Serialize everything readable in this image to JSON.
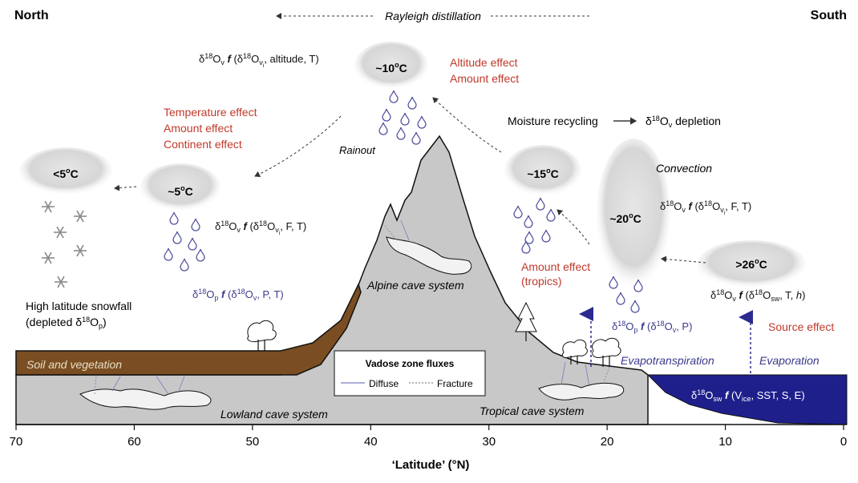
{
  "header": {
    "north": "North",
    "south": "South",
    "rayleigh": "Rayleigh distillation"
  },
  "clouds": {
    "c10": "~10",
    "c5a": "<5",
    "c5b": "~5",
    "c15": "~15",
    "c20": "~20",
    "c26": ">26",
    "deg": "o",
    "C": "C"
  },
  "effects": {
    "altitude": "Altitude effect",
    "amount_top": "Amount effect",
    "temperature": "Temperature effect",
    "amount_left": "Amount effect",
    "continent": "Continent effect",
    "amount_tropics": "Amount effect",
    "tropics": "(tropics)",
    "source": "Source effect"
  },
  "labels": {
    "rainout": "Rainout",
    "moisture_recycling": "Moisture recycling",
    "depletion": "depletion",
    "convection": "Convection",
    "high_lat_1": "High latitude snowfall",
    "high_lat_2a": "(depleted δ",
    "high_lat_2b": "18",
    "high_lat_2c": "O",
    "high_lat_2d": "p",
    "high_lat_2e": ")",
    "alpine": "Alpine cave system",
    "lowland": "Lowland cave system",
    "tropical": "Tropical cave system",
    "soil": "Soil and vegetation",
    "evapotranspiration": "Evapotranspiration",
    "evaporation": "Evaporation"
  },
  "legend": {
    "title": "Vadose zone fluxes",
    "diffuse": "Diffuse",
    "fracture": "Fracture"
  },
  "axis": {
    "title": "‘Latitude’ (°N)",
    "ticks": [
      "70",
      "60",
      "50",
      "40",
      "30",
      "20",
      "10",
      "0"
    ]
  },
  "formula": {
    "delta": "δ",
    "eighteen": "18",
    "O": "O",
    "v": "v",
    "vi": "v",
    "i": "i",
    "p": "p",
    "sw": "sw",
    "ice": "ice",
    "f": "f",
    "top_rest": ", altitude, T)",
    "left_rest": ", F, T)",
    "right_rest": ", F, T)",
    "op_left_rest": ", P, T)",
    "op_right_rest": ", P)",
    "src_rest": ", T, ",
    "h": "h",
    "close": ")",
    "open": " (δ",
    "sw_v": "V",
    "sw_rest": ", SST, S, E)"
  }
}
